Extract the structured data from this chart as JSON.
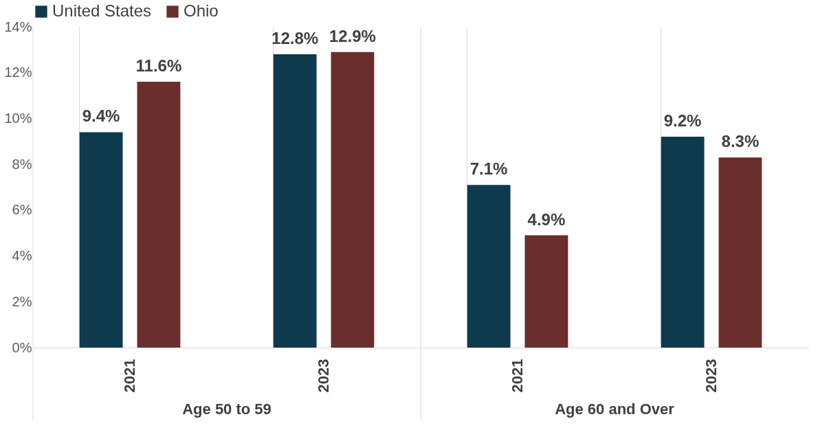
{
  "chart_data": {
    "type": "bar",
    "categories": [
      "2021",
      "2023",
      "2021",
      "2023"
    ],
    "series": [
      {
        "name": "United States",
        "color": "#0d3a4c",
        "values": [
          9.4,
          12.8,
          7.1,
          9.2
        ],
        "value_labels": [
          "9.4%",
          "12.8%",
          "7.1%",
          "9.2%"
        ]
      },
      {
        "name": "Ohio",
        "color": "#6a2e2c",
        "values": [
          11.6,
          12.9,
          4.9,
          8.3
        ],
        "value_labels": [
          "11.6%",
          "12.9%",
          "4.9%",
          "8.3%"
        ]
      }
    ],
    "ylim": [
      0,
      14
    ],
    "yticks": [
      {
        "value": 0,
        "label": "0%"
      },
      {
        "value": 2,
        "label": "2%"
      },
      {
        "value": 4,
        "label": "4%"
      },
      {
        "value": 6,
        "label": "6%"
      },
      {
        "value": 8,
        "label": "8%"
      },
      {
        "value": 10,
        "label": "10%"
      },
      {
        "value": 12,
        "label": "12%"
      },
      {
        "value": 14,
        "label": "14%"
      }
    ],
    "annotations": [
      "Age 50 to 59",
      "Age 60 and Over"
    ],
    "grid": "x",
    "legend": "top"
  }
}
